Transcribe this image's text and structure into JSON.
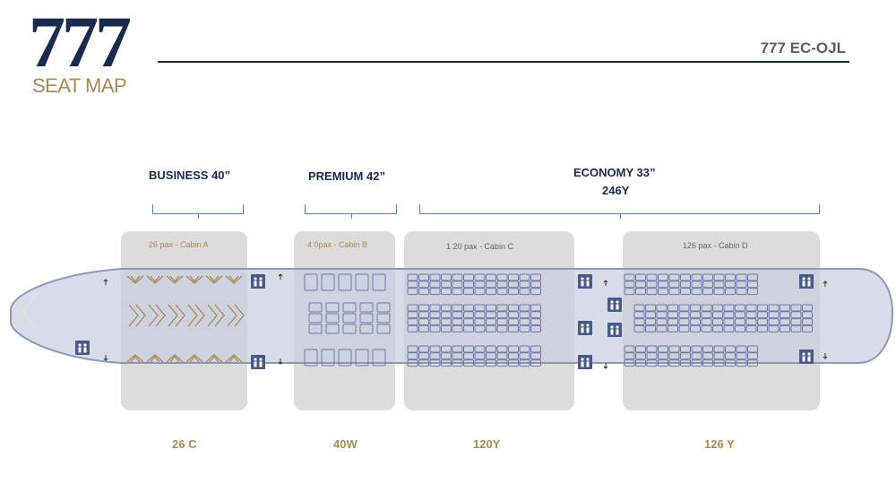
{
  "header": {
    "logo_number": "777",
    "logo_subtitle": "SEAT MAP",
    "registration": "777 EC-OJL"
  },
  "classes": {
    "business": {
      "title": "BUSINESS  40”"
    },
    "premium": {
      "title": "PREMIUM 42”"
    },
    "economy": {
      "title": "ECONOMY 33”",
      "subtitle": "246Y"
    }
  },
  "cabins": [
    {
      "id": "A",
      "pax_label": "26  pax - Cabin A",
      "count_label": "26 C"
    },
    {
      "id": "B",
      "pax_label": "4 0pax - Cabin B",
      "count_label": "40W"
    },
    {
      "id": "C",
      "pax_label": "1 20  pax - Cabin C",
      "count_label": "120Y"
    },
    {
      "id": "D",
      "pax_label": "126 pax - Cabin D",
      "count_label": "126 Y"
    }
  ],
  "colors": {
    "navy": "#1a2a4d",
    "gold": "#a58a5a",
    "fuselage_fill": "#c9cfdf",
    "fuselage_stroke": "#8e98b5",
    "cabin_bg": "#dcdcdc",
    "seat_stroke": "#6e7aa6",
    "lav_fill": "#4a5a86"
  },
  "icons": [
    "lavatory-icon",
    "arrow-up-icon",
    "arrow-down-icon"
  ]
}
